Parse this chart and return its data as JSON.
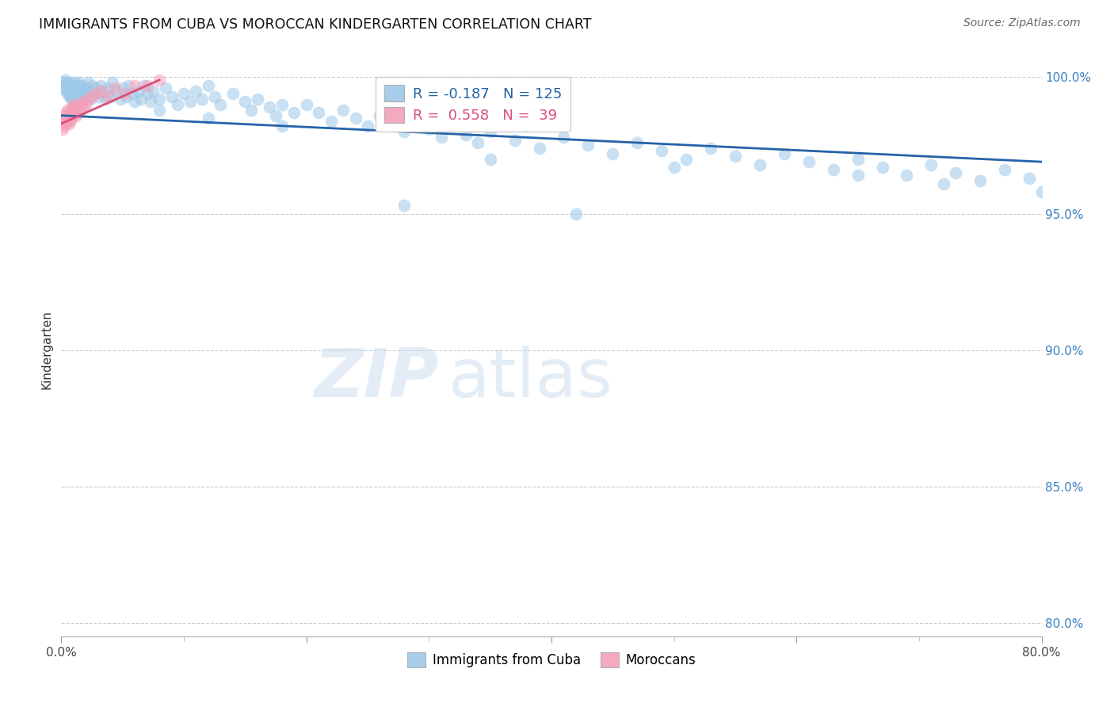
{
  "title": "IMMIGRANTS FROM CUBA VS MOROCCAN KINDERGARTEN CORRELATION CHART",
  "source": "Source: ZipAtlas.com",
  "ylabel": "Kindergarten",
  "xlim": [
    0.0,
    0.8
  ],
  "ylim": [
    0.795,
    1.005
  ],
  "x_ticks": [
    0.0,
    0.2,
    0.4,
    0.6,
    0.8
  ],
  "x_tick_labels": [
    "0.0%",
    "",
    "",
    "",
    "80.0%"
  ],
  "y_ticks_right": [
    0.8,
    0.85,
    0.9,
    0.95,
    1.0
  ],
  "y_tick_labels_right": [
    "80.0%",
    "85.0%",
    "90.0%",
    "95.0%",
    "100.0%"
  ],
  "blue_color": "#9ec8e8",
  "pink_color": "#f4a0b8",
  "blue_line_color": "#2563a8",
  "pink_line_color": "#d94f78",
  "R_blue": -0.187,
  "N_blue": 125,
  "R_pink": 0.558,
  "N_pink": 39,
  "legend_label_blue": "Immigrants from Cuba",
  "legend_label_pink": "Moroccans",
  "watermark_zip": "ZIP",
  "watermark_atlas": "atlas",
  "blue_scatter_x": [
    0.001,
    0.002,
    0.003,
    0.003,
    0.004,
    0.004,
    0.005,
    0.005,
    0.006,
    0.006,
    0.007,
    0.007,
    0.008,
    0.008,
    0.009,
    0.009,
    0.01,
    0.01,
    0.011,
    0.011,
    0.012,
    0.012,
    0.013,
    0.014,
    0.014,
    0.015,
    0.016,
    0.017,
    0.018,
    0.019,
    0.02,
    0.021,
    0.022,
    0.023,
    0.024,
    0.025,
    0.027,
    0.028,
    0.03,
    0.032,
    0.034,
    0.036,
    0.038,
    0.04,
    0.042,
    0.045,
    0.048,
    0.05,
    0.053,
    0.055,
    0.058,
    0.06,
    0.063,
    0.065,
    0.068,
    0.07,
    0.073,
    0.075,
    0.08,
    0.085,
    0.09,
    0.095,
    0.1,
    0.105,
    0.11,
    0.115,
    0.12,
    0.125,
    0.13,
    0.14,
    0.15,
    0.155,
    0.16,
    0.17,
    0.175,
    0.18,
    0.19,
    0.2,
    0.21,
    0.22,
    0.23,
    0.24,
    0.25,
    0.26,
    0.27,
    0.28,
    0.29,
    0.3,
    0.31,
    0.32,
    0.33,
    0.34,
    0.35,
    0.37,
    0.39,
    0.41,
    0.43,
    0.45,
    0.47,
    0.49,
    0.51,
    0.53,
    0.55,
    0.57,
    0.59,
    0.61,
    0.63,
    0.65,
    0.67,
    0.69,
    0.71,
    0.73,
    0.75,
    0.77,
    0.79,
    0.35,
    0.5,
    0.65,
    0.72,
    0.8,
    0.28,
    0.42,
    0.18,
    0.12,
    0.08
  ],
  "blue_scatter_y": [
    0.998,
    0.996,
    0.999,
    0.997,
    0.998,
    0.995,
    0.997,
    0.994,
    0.998,
    0.995,
    0.997,
    0.993,
    0.996,
    0.992,
    0.997,
    0.993,
    0.996,
    0.992,
    0.998,
    0.994,
    0.997,
    0.993,
    0.996,
    0.998,
    0.994,
    0.997,
    0.995,
    0.993,
    0.997,
    0.994,
    0.996,
    0.993,
    0.998,
    0.995,
    0.992,
    0.997,
    0.994,
    0.996,
    0.993,
    0.997,
    0.995,
    0.992,
    0.996,
    0.993,
    0.998,
    0.995,
    0.992,
    0.996,
    0.993,
    0.997,
    0.994,
    0.991,
    0.995,
    0.992,
    0.997,
    0.994,
    0.991,
    0.995,
    0.992,
    0.996,
    0.993,
    0.99,
    0.994,
    0.991,
    0.995,
    0.992,
    0.997,
    0.993,
    0.99,
    0.994,
    0.991,
    0.988,
    0.992,
    0.989,
    0.986,
    0.99,
    0.987,
    0.99,
    0.987,
    0.984,
    0.988,
    0.985,
    0.982,
    0.986,
    0.983,
    0.98,
    0.984,
    0.981,
    0.978,
    0.982,
    0.979,
    0.976,
    0.98,
    0.977,
    0.974,
    0.978,
    0.975,
    0.972,
    0.976,
    0.973,
    0.97,
    0.974,
    0.971,
    0.968,
    0.972,
    0.969,
    0.966,
    0.97,
    0.967,
    0.964,
    0.968,
    0.965,
    0.962,
    0.966,
    0.963,
    0.97,
    0.967,
    0.964,
    0.961,
    0.958,
    0.953,
    0.95,
    0.982,
    0.985,
    0.988
  ],
  "pink_scatter_x": [
    0.001,
    0.001,
    0.002,
    0.002,
    0.003,
    0.003,
    0.004,
    0.004,
    0.005,
    0.005,
    0.006,
    0.006,
    0.007,
    0.007,
    0.008,
    0.008,
    0.009,
    0.009,
    0.01,
    0.01,
    0.011,
    0.012,
    0.013,
    0.014,
    0.015,
    0.016,
    0.017,
    0.018,
    0.02,
    0.022,
    0.025,
    0.028,
    0.032,
    0.038,
    0.044,
    0.052,
    0.06,
    0.07,
    0.08
  ],
  "pink_scatter_y": [
    0.981,
    0.984,
    0.982,
    0.985,
    0.983,
    0.986,
    0.984,
    0.987,
    0.985,
    0.988,
    0.983,
    0.986,
    0.984,
    0.987,
    0.985,
    0.988,
    0.986,
    0.989,
    0.987,
    0.99,
    0.988,
    0.986,
    0.989,
    0.987,
    0.99,
    0.988,
    0.991,
    0.989,
    0.99,
    0.992,
    0.993,
    0.994,
    0.995,
    0.993,
    0.996,
    0.994,
    0.997,
    0.997,
    0.999
  ],
  "blue_trend_x": [
    0.0,
    0.8
  ],
  "blue_trend_y": [
    0.986,
    0.969
  ],
  "pink_trend_x": [
    0.0,
    0.08
  ],
  "pink_trend_y": [
    0.983,
    0.999
  ]
}
